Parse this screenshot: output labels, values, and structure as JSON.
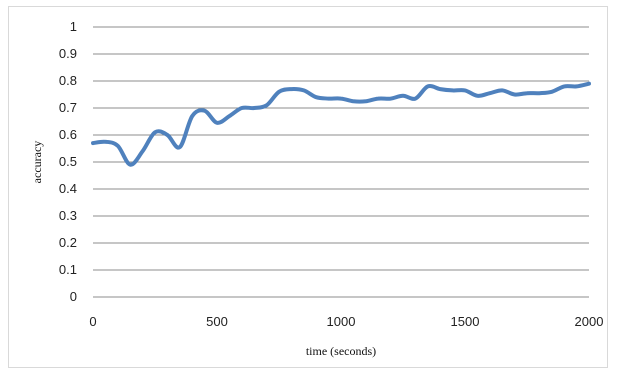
{
  "chart_data": {
    "type": "line",
    "xlabel": "time (seconds)",
    "ylabel": "accuracy",
    "xlim": [
      0,
      2000
    ],
    "ylim": [
      0,
      1
    ],
    "x_ticks": [
      "0",
      "500",
      "1000",
      "1500",
      "2000"
    ],
    "y_ticks": [
      "0",
      "0.1",
      "0.2",
      "0.3",
      "0.4",
      "0.5",
      "0.6",
      "0.7",
      "0.8",
      "0.9",
      "1"
    ],
    "grid": "horizontal",
    "legend": "none",
    "series": [
      {
        "color": "#4f81bd",
        "x": [
          0,
          50,
          100,
          150,
          200,
          250,
          300,
          350,
          400,
          450,
          500,
          550,
          600,
          650,
          700,
          750,
          800,
          850,
          900,
          950,
          1000,
          1050,
          1100,
          1150,
          1200,
          1250,
          1300,
          1350,
          1400,
          1450,
          1500,
          1550,
          1600,
          1650,
          1700,
          1750,
          1800,
          1850,
          1900,
          1950,
          2000
        ],
        "y": [
          0.57,
          0.575,
          0.56,
          0.49,
          0.54,
          0.61,
          0.6,
          0.555,
          0.67,
          0.69,
          0.645,
          0.67,
          0.7,
          0.7,
          0.71,
          0.76,
          0.77,
          0.765,
          0.74,
          0.735,
          0.735,
          0.725,
          0.725,
          0.735,
          0.735,
          0.745,
          0.735,
          0.78,
          0.77,
          0.765,
          0.765,
          0.745,
          0.755,
          0.765,
          0.75,
          0.755,
          0.755,
          0.76,
          0.78,
          0.78,
          0.79
        ]
      }
    ]
  }
}
